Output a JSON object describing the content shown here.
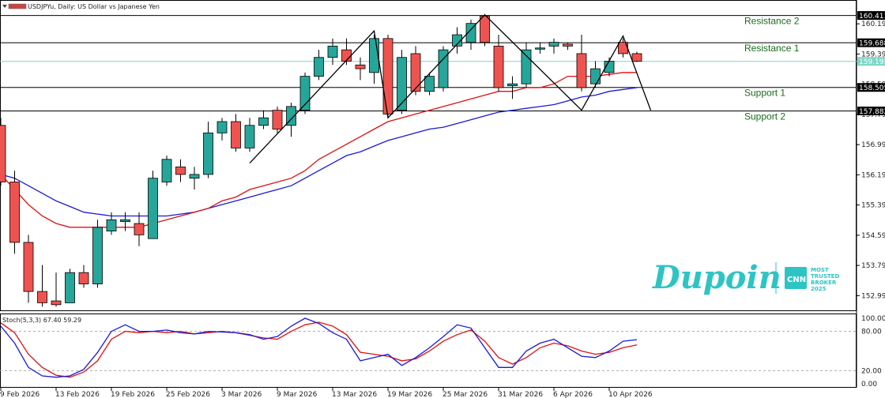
{
  "chart_data": {
    "type": "candlestick",
    "symbol_header": "USDJPYu, Daily:  US Dollar vs Japanese Yen",
    "colors": {
      "bull": "#26a69a",
      "bear": "#ef5350",
      "ma_fast": "#e01010",
      "ma_slow": "#1a1ad8",
      "pattern": "#000000",
      "stoch_main": "#1a1ad8",
      "stoch_signal": "#e01010",
      "level_line": "#000000",
      "current_price_line": "#7fd6c8",
      "level_label": "#1a6b1a"
    },
    "ylim": [
      152.6,
      160.8
    ],
    "price_ticks": [
      "160.190",
      "159.390",
      "158.590",
      "157.790",
      "156.990",
      "156.190",
      "155.390",
      "154.590",
      "153.790",
      "152.990"
    ],
    "levels": [
      {
        "name": "Resistance 2",
        "value": 160.411,
        "tag": "160.411"
      },
      {
        "name": "Resistance 1",
        "value": 159.688,
        "tag": "159.688"
      },
      {
        "name": "Support 1",
        "value": 158.505,
        "tag": "158.505"
      },
      {
        "name": "Support 2",
        "value": 157.882,
        "tag": "157.882"
      }
    ],
    "current_price": {
      "value": 159.195,
      "tag": "159.195"
    },
    "candles": [
      {
        "o": 157.5,
        "h": 157.7,
        "l": 155.9,
        "c": 156.0
      },
      {
        "o": 156.0,
        "h": 156.3,
        "l": 154.1,
        "c": 154.4
      },
      {
        "o": 154.4,
        "h": 154.6,
        "l": 152.8,
        "c": 153.1
      },
      {
        "o": 153.1,
        "h": 153.8,
        "l": 152.7,
        "c": 152.8
      },
      {
        "o": 152.85,
        "h": 153.6,
        "l": 152.7,
        "c": 152.75
      },
      {
        "o": 152.8,
        "h": 153.7,
        "l": 152.8,
        "c": 153.6
      },
      {
        "o": 153.6,
        "h": 153.8,
        "l": 153.2,
        "c": 153.3
      },
      {
        "o": 153.3,
        "h": 155.0,
        "l": 153.2,
        "c": 154.8
      },
      {
        "o": 154.7,
        "h": 155.2,
        "l": 154.6,
        "c": 155.0
      },
      {
        "o": 154.95,
        "h": 155.2,
        "l": 154.7,
        "c": 155.0
      },
      {
        "o": 154.9,
        "h": 155.2,
        "l": 154.3,
        "c": 154.6
      },
      {
        "o": 154.5,
        "h": 156.3,
        "l": 154.5,
        "c": 156.1
      },
      {
        "o": 156.0,
        "h": 156.7,
        "l": 155.9,
        "c": 156.6
      },
      {
        "o": 156.4,
        "h": 156.6,
        "l": 156.0,
        "c": 156.2
      },
      {
        "o": 156.1,
        "h": 156.4,
        "l": 155.8,
        "c": 156.2
      },
      {
        "o": 156.2,
        "h": 157.6,
        "l": 156.1,
        "c": 157.3
      },
      {
        "o": 157.3,
        "h": 157.7,
        "l": 157.1,
        "c": 157.6
      },
      {
        "o": 157.6,
        "h": 157.8,
        "l": 156.8,
        "c": 156.9
      },
      {
        "o": 156.9,
        "h": 157.7,
        "l": 156.8,
        "c": 157.5
      },
      {
        "o": 157.5,
        "h": 157.9,
        "l": 157.4,
        "c": 157.7
      },
      {
        "o": 157.9,
        "h": 158.0,
        "l": 157.3,
        "c": 157.4
      },
      {
        "o": 157.5,
        "h": 158.1,
        "l": 157.2,
        "c": 158.0
      },
      {
        "o": 157.9,
        "h": 158.9,
        "l": 157.8,
        "c": 158.8
      },
      {
        "o": 158.8,
        "h": 159.5,
        "l": 158.7,
        "c": 159.3
      },
      {
        "o": 159.3,
        "h": 159.8,
        "l": 159.1,
        "c": 159.6
      },
      {
        "o": 159.5,
        "h": 159.8,
        "l": 159.1,
        "c": 159.2
      },
      {
        "o": 159.1,
        "h": 159.3,
        "l": 158.7,
        "c": 159.0
      },
      {
        "o": 158.9,
        "h": 159.9,
        "l": 158.6,
        "c": 159.8
      },
      {
        "o": 159.8,
        "h": 159.9,
        "l": 157.7,
        "c": 157.8
      },
      {
        "o": 157.9,
        "h": 159.5,
        "l": 157.8,
        "c": 159.3
      },
      {
        "o": 159.4,
        "h": 159.6,
        "l": 158.3,
        "c": 158.4
      },
      {
        "o": 158.4,
        "h": 158.9,
        "l": 158.3,
        "c": 158.8
      },
      {
        "o": 158.5,
        "h": 159.6,
        "l": 158.4,
        "c": 159.5
      },
      {
        "o": 159.6,
        "h": 160.1,
        "l": 159.4,
        "c": 159.9
      },
      {
        "o": 159.7,
        "h": 160.3,
        "l": 159.5,
        "c": 160.2
      },
      {
        "o": 160.4,
        "h": 160.45,
        "l": 159.6,
        "c": 159.7
      },
      {
        "o": 159.6,
        "h": 159.9,
        "l": 158.4,
        "c": 158.5
      },
      {
        "o": 158.55,
        "h": 158.8,
        "l": 158.2,
        "c": 158.6
      },
      {
        "o": 158.6,
        "h": 159.7,
        "l": 158.5,
        "c": 159.5
      },
      {
        "o": 159.55,
        "h": 159.7,
        "l": 159.4,
        "c": 159.55
      },
      {
        "o": 159.6,
        "h": 159.8,
        "l": 159.4,
        "c": 159.7
      },
      {
        "o": 159.65,
        "h": 159.7,
        "l": 159.5,
        "c": 159.6
      },
      {
        "o": 159.4,
        "h": 159.9,
        "l": 158.4,
        "c": 158.5
      },
      {
        "o": 158.6,
        "h": 159.2,
        "l": 158.5,
        "c": 159.0
      },
      {
        "o": 158.9,
        "h": 159.3,
        "l": 158.8,
        "c": 159.2
      },
      {
        "o": 159.7,
        "h": 159.8,
        "l": 159.3,
        "c": 159.4
      },
      {
        "o": 159.4,
        "h": 159.45,
        "l": 159.18,
        "c": 159.2
      }
    ],
    "ma_fast": [
      156.2,
      155.8,
      155.4,
      155.1,
      154.9,
      154.8,
      154.8,
      154.8,
      154.8,
      154.8,
      154.8,
      154.9,
      155.0,
      155.1,
      155.2,
      155.3,
      155.5,
      155.6,
      155.8,
      155.9,
      156.0,
      156.1,
      156.3,
      156.6,
      156.8,
      157.0,
      157.2,
      157.4,
      157.6,
      157.7,
      157.8,
      157.9,
      158.0,
      158.1,
      158.2,
      158.3,
      158.4,
      158.4,
      158.5,
      158.5,
      158.6,
      158.8,
      158.8,
      158.8,
      158.85,
      158.9,
      158.9
    ],
    "ma_slow": [
      156.2,
      156.1,
      155.9,
      155.7,
      155.5,
      155.35,
      155.2,
      155.15,
      155.1,
      155.1,
      155.1,
      155.1,
      155.1,
      155.15,
      155.2,
      155.3,
      155.4,
      155.5,
      155.6,
      155.7,
      155.8,
      155.9,
      156.1,
      156.3,
      156.5,
      156.7,
      156.8,
      156.95,
      157.1,
      157.2,
      157.3,
      157.4,
      157.45,
      157.55,
      157.65,
      157.75,
      157.85,
      157.9,
      157.95,
      158.0,
      158.05,
      158.15,
      158.25,
      158.3,
      158.4,
      158.45,
      158.5
    ],
    "pattern_path": [
      [
        18,
        156.5
      ],
      [
        27,
        160.0
      ],
      [
        28,
        157.7
      ],
      [
        35,
        160.43
      ],
      [
        42,
        157.9
      ],
      [
        45,
        159.87
      ],
      [
        47,
        157.9
      ]
    ],
    "date_ticks": [
      {
        "i": 0,
        "label": "9 Feb 2026"
      },
      {
        "i": 4,
        "label": "13 Feb 2026"
      },
      {
        "i": 8,
        "label": "19 Feb 2026"
      },
      {
        "i": 12,
        "label": "25 Feb 2026"
      },
      {
        "i": 16,
        "label": "3 Mar 2026"
      },
      {
        "i": 20,
        "label": "9 Mar 2026"
      },
      {
        "i": 24,
        "label": "13 Mar 2026"
      },
      {
        "i": 28,
        "label": "19 Mar 2026"
      },
      {
        "i": 32,
        "label": "25 Mar 2026"
      },
      {
        "i": 36,
        "label": "31 Mar 2026"
      },
      {
        "i": 40,
        "label": "6 Apr 2026"
      },
      {
        "i": 44,
        "label": "10 Apr 2026"
      }
    ],
    "stochastic": {
      "header": "Stoch(5,3,3) 67.40 59.29",
      "ticks": [
        "100.00",
        "80.00",
        "20.00",
        "0.00"
      ],
      "main": [
        88,
        62,
        25,
        12,
        10,
        12,
        22,
        48,
        80,
        90,
        80,
        80,
        82,
        78,
        76,
        80,
        79,
        78,
        75,
        68,
        72,
        88,
        100,
        92,
        78,
        68,
        35,
        40,
        45,
        28,
        40,
        55,
        72,
        90,
        85,
        55,
        25,
        25,
        50,
        62,
        68,
        55,
        42,
        40,
        50,
        65,
        67.4
      ],
      "signal": [
        93,
        78,
        45,
        25,
        13,
        10,
        18,
        35,
        68,
        80,
        78,
        80,
        78,
        80,
        76,
        78,
        80,
        78,
        74,
        70,
        68,
        80,
        90,
        94,
        88,
        75,
        48,
        45,
        42,
        35,
        38,
        50,
        65,
        75,
        82,
        65,
        40,
        30,
        40,
        55,
        62,
        58,
        50,
        45,
        48,
        55,
        59.29
      ]
    }
  },
  "branding": {
    "logo_text": "Dupoin",
    "badge_word": "CNN",
    "badge_lines": [
      "MOST",
      "TRUSTED",
      "BROKER",
      "2025"
    ]
  }
}
